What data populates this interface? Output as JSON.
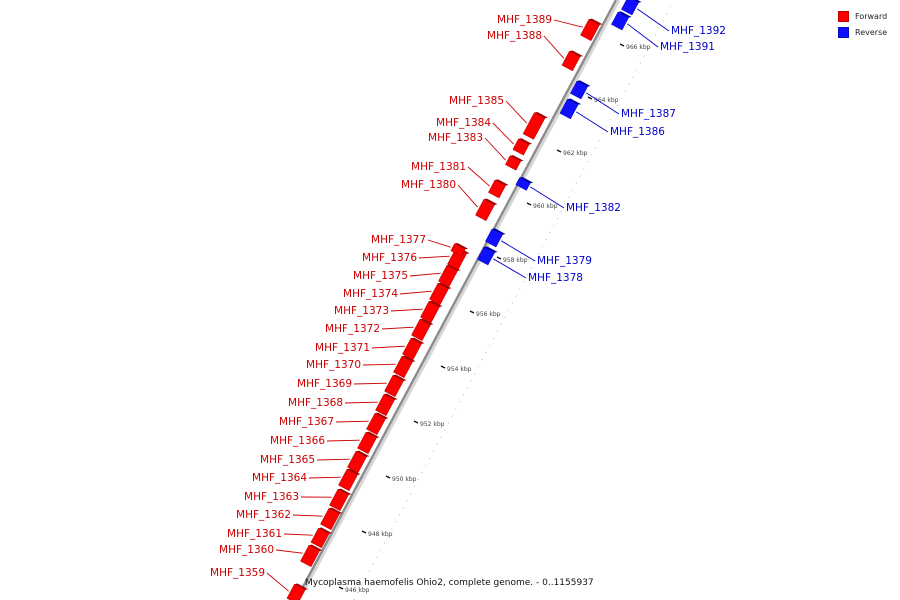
{
  "caption": "Mycoplasma haemofelis Ohio2, complete genome. - 0..1155937",
  "legend": {
    "forward": {
      "label": "Forward",
      "color": "#ff0000"
    },
    "reverse": {
      "label": "Reverse",
      "color": "#1010ff"
    }
  },
  "colors": {
    "forward": "#ff0000",
    "reverse": "#1010ff",
    "axis": "#8c8c8c",
    "tick": "#111111"
  },
  "ticks": [
    {
      "label": "946 kbp"
    },
    {
      "label": "948 kbp"
    },
    {
      "label": "950 kbp"
    },
    {
      "label": "952 kbp"
    },
    {
      "label": "954 kbp"
    },
    {
      "label": "956 kbp"
    },
    {
      "label": "958 kbp"
    },
    {
      "label": "960 kbp"
    },
    {
      "label": "962 kbp"
    },
    {
      "label": "964 kbp"
    },
    {
      "label": "966 kbp"
    }
  ],
  "genes": [
    {
      "name": "MHF_1359",
      "strand": "forward"
    },
    {
      "name": "MHF_1360",
      "strand": "forward"
    },
    {
      "name": "MHF_1361",
      "strand": "forward"
    },
    {
      "name": "MHF_1362",
      "strand": "forward"
    },
    {
      "name": "MHF_1363",
      "strand": "forward"
    },
    {
      "name": "MHF_1364",
      "strand": "forward"
    },
    {
      "name": "MHF_1365",
      "strand": "forward"
    },
    {
      "name": "MHF_1366",
      "strand": "forward"
    },
    {
      "name": "MHF_1367",
      "strand": "forward"
    },
    {
      "name": "MHF_1368",
      "strand": "forward"
    },
    {
      "name": "MHF_1369",
      "strand": "forward"
    },
    {
      "name": "MHF_1370",
      "strand": "forward"
    },
    {
      "name": "MHF_1371",
      "strand": "forward"
    },
    {
      "name": "MHF_1372",
      "strand": "forward"
    },
    {
      "name": "MHF_1373",
      "strand": "forward"
    },
    {
      "name": "MHF_1374",
      "strand": "forward"
    },
    {
      "name": "MHF_1375",
      "strand": "forward"
    },
    {
      "name": "MHF_1376",
      "strand": "forward"
    },
    {
      "name": "MHF_1377",
      "strand": "forward"
    },
    {
      "name": "MHF_1378",
      "strand": "reverse"
    },
    {
      "name": "MHF_1379",
      "strand": "reverse"
    },
    {
      "name": "MHF_1380",
      "strand": "forward"
    },
    {
      "name": "MHF_1381",
      "strand": "forward"
    },
    {
      "name": "MHF_1382",
      "strand": "reverse"
    },
    {
      "name": "MHF_1383",
      "strand": "forward"
    },
    {
      "name": "MHF_1384",
      "strand": "forward"
    },
    {
      "name": "MHF_1385",
      "strand": "forward"
    },
    {
      "name": "MHF_1386",
      "strand": "reverse"
    },
    {
      "name": "MHF_1387",
      "strand": "reverse"
    },
    {
      "name": "MHF_1388",
      "strand": "forward"
    },
    {
      "name": "MHF_1389",
      "strand": "forward"
    },
    {
      "name": "MHF_1391",
      "strand": "reverse"
    },
    {
      "name": "MHF_1392",
      "strand": "reverse"
    }
  ]
}
